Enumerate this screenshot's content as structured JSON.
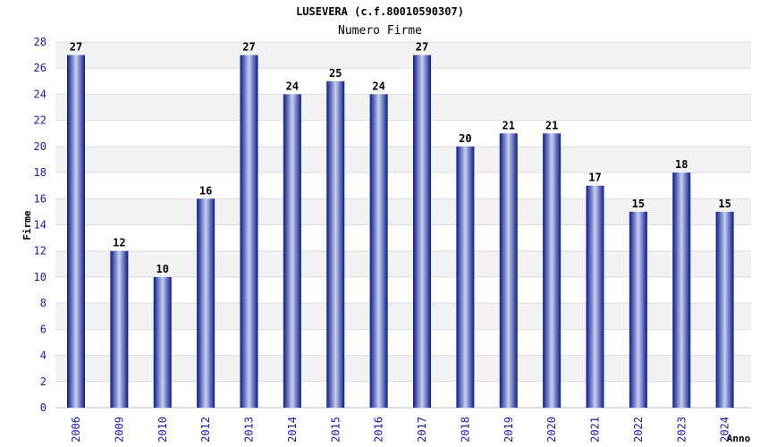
{
  "chart_data": {
    "type": "bar",
    "title": "LUSEVERA (c.f.80010590307)",
    "subtitle": "Numero Firme",
    "xlabel": "Anno",
    "ylabel": "Firme",
    "categories": [
      "2006",
      "2009",
      "2010",
      "2012",
      "2013",
      "2014",
      "2015",
      "2016",
      "2017",
      "2018",
      "2019",
      "2020",
      "2021",
      "2022",
      "2023",
      "2024"
    ],
    "values": [
      27,
      12,
      10,
      16,
      27,
      24,
      25,
      24,
      27,
      20,
      21,
      21,
      17,
      15,
      18,
      15
    ],
    "ylim": [
      0,
      28
    ],
    "ytick_step": 2,
    "grid": true,
    "legend": "none",
    "colors": {
      "bar_dark": "#0a1a8c",
      "bar_light": "#c8d0f0",
      "band": "#f2f2f2",
      "tick_text": "#1a1aa8"
    }
  }
}
